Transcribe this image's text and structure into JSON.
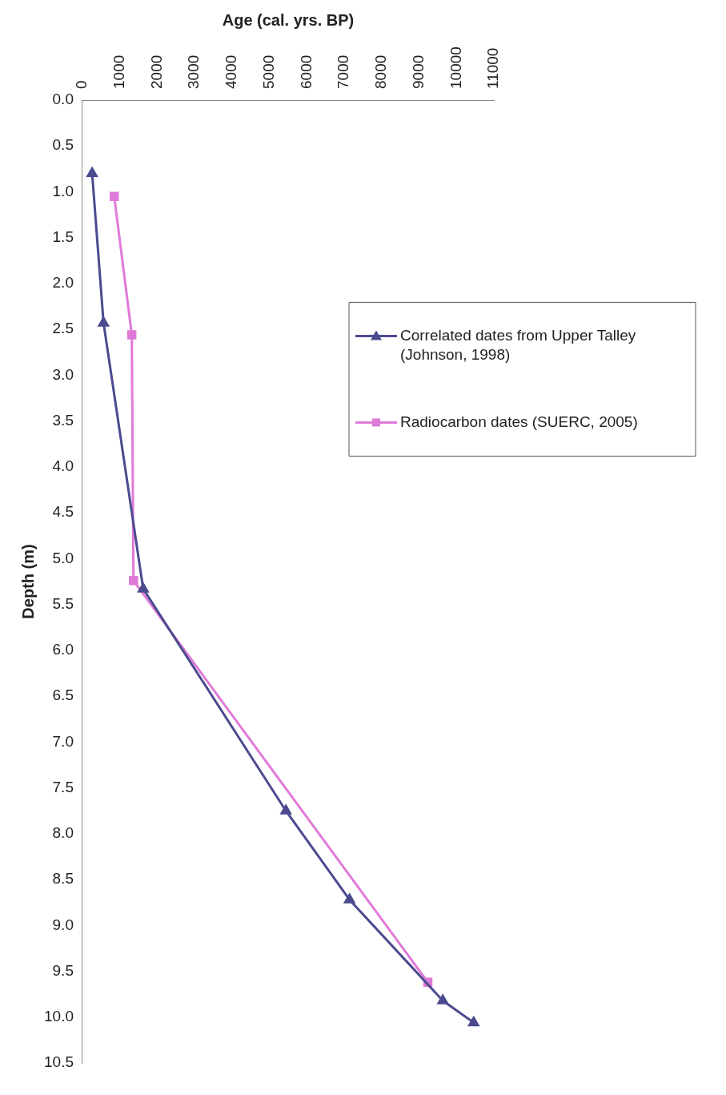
{
  "chart_data": {
    "type": "line",
    "xlabel": "Age (cal. yrs. BP)",
    "ylabel": "Depth (m)",
    "xlim": [
      0,
      11000
    ],
    "xticks": [
      0,
      1000,
      2000,
      3000,
      4000,
      5000,
      6000,
      7000,
      8000,
      9000,
      10000,
      11000
    ],
    "ylim": [
      10.5,
      0
    ],
    "yticks": [
      {
        "value": 0,
        "label": "0.0"
      },
      {
        "value": 0.5,
        "label": "0.5"
      },
      {
        "value": 1,
        "label": "1.0"
      },
      {
        "value": 1.5,
        "label": "1.5"
      },
      {
        "value": 2,
        "label": "2.0"
      },
      {
        "value": 2.5,
        "label": "2.5"
      },
      {
        "value": 3,
        "label": "3.0"
      },
      {
        "value": 3.5,
        "label": "3.5"
      },
      {
        "value": 4,
        "label": "4.0"
      },
      {
        "value": 4.5,
        "label": "4.5"
      },
      {
        "value": 5,
        "label": "5.0"
      },
      {
        "value": 5.5,
        "label": "5.5"
      },
      {
        "value": 6,
        "label": "6.0"
      },
      {
        "value": 6.5,
        "label": "6.5"
      },
      {
        "value": 7,
        "label": "7.0"
      },
      {
        "value": 7.5,
        "label": "7.5"
      },
      {
        "value": 8,
        "label": "8.0"
      },
      {
        "value": 8.5,
        "label": "8.5"
      },
      {
        "value": 9,
        "label": "9.0"
      },
      {
        "value": 9.5,
        "label": "9.5"
      },
      {
        "value": 10,
        "label": "10.0"
      },
      {
        "value": 10.5,
        "label": "10.5"
      }
    ],
    "grid": false,
    "legend": "right",
    "line_style": "solid",
    "series": [
      {
        "name": "Correlated dates from Upper Talley (Johnson, 1998)",
        "color": "#4b4a8f",
        "marker": "triangle",
        "x": [
          260,
          565,
          1625,
          5440,
          7140,
          9635,
          10460
        ],
        "values": [
          0.8,
          2.43,
          5.33,
          7.75,
          8.72,
          9.82,
          10.06
        ]
      },
      {
        "name": "Radiocarbon dates (SUERC, 2005)",
        "color": "#e07ad8",
        "marker": "square",
        "x": [
          850,
          1320,
          1365,
          9235
        ],
        "values": [
          1.05,
          2.56,
          5.24,
          9.62
        ]
      }
    ]
  }
}
